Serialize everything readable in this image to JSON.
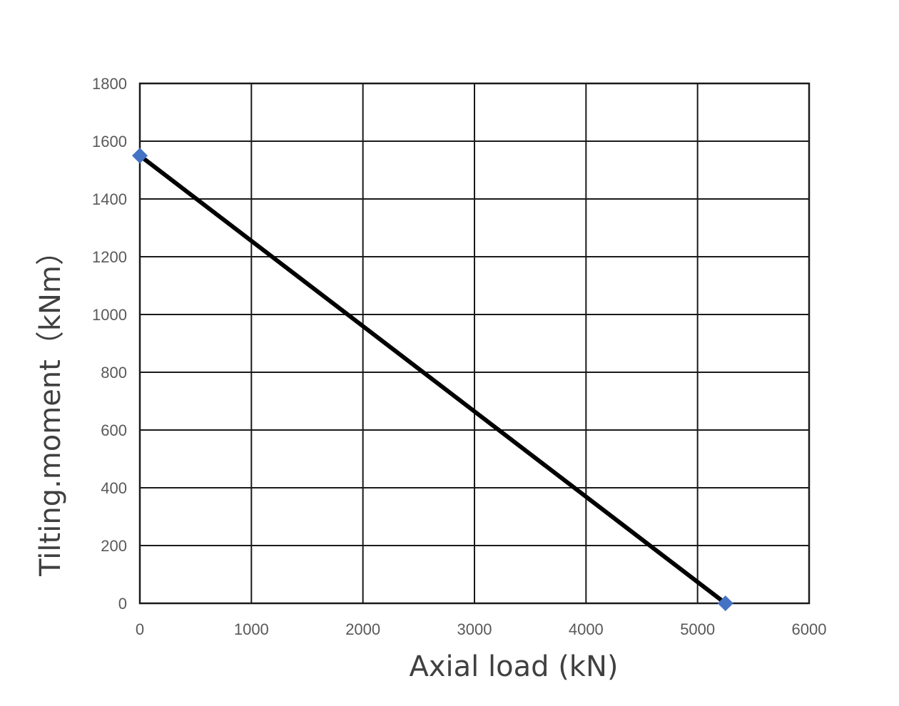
{
  "chart_data": {
    "type": "line",
    "xlabel": "Axial load (kN)",
    "ylabel": "Tilting.moment（kNm）",
    "xlim": [
      0,
      6000
    ],
    "ylim": [
      0,
      1800
    ],
    "x_ticks": [
      0,
      1000,
      2000,
      3000,
      4000,
      5000,
      6000
    ],
    "y_ticks": [
      0,
      200,
      400,
      600,
      800,
      1000,
      1200,
      1400,
      1600,
      1800
    ],
    "x_tick_labels": [
      "0",
      "1000",
      "2000",
      "3000",
      "4000",
      "5000",
      "6000"
    ],
    "y_tick_labels": [
      "0",
      "200",
      "400",
      "600",
      "800",
      "1000",
      "1200",
      "1400",
      "1600",
      "1800"
    ],
    "grid": true,
    "series": [
      {
        "x": [
          0,
          5250
        ],
        "y": [
          1550,
          0
        ],
        "line_color": "#000000",
        "marker": "diamond",
        "marker_color": "#4472C4"
      }
    ]
  }
}
